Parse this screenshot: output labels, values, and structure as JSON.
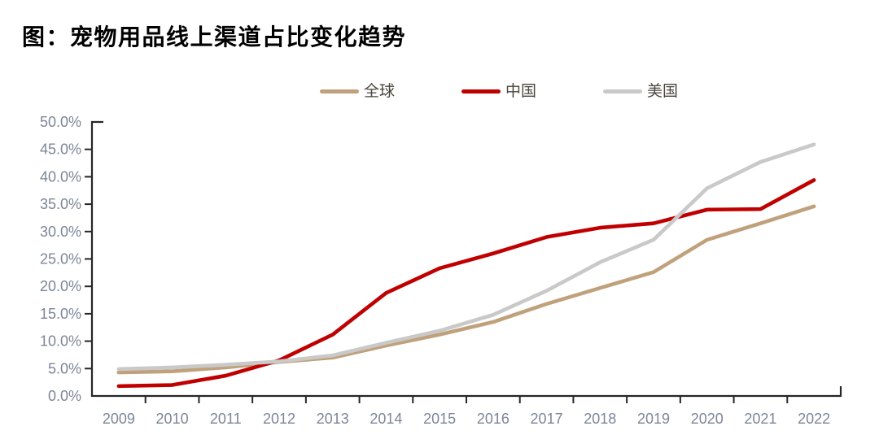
{
  "title": "图：宠物用品线上渠道占比变化趋势",
  "chart_data": {
    "type": "line",
    "title": "图：宠物用品线上渠道占比变化趋势",
    "categories": [
      "2009",
      "2010",
      "2011",
      "2012",
      "2013",
      "2014",
      "2015",
      "2016",
      "2017",
      "2018",
      "2019",
      "2020",
      "2021",
      "2022"
    ],
    "series": [
      {
        "name": "全球",
        "color": "#BFA27C",
        "values": [
          4.3,
          4.5,
          5.2,
          6.2,
          7.0,
          9.2,
          11.2,
          13.5,
          16.8,
          19.7,
          22.6,
          28.5,
          31.5,
          34.6
        ]
      },
      {
        "name": "中国",
        "color": "#C00000",
        "values": [
          1.8,
          2.0,
          3.7,
          6.5,
          11.2,
          18.8,
          23.3,
          26.0,
          29.0,
          30.7,
          31.5,
          34.0,
          34.1,
          39.4
        ]
      },
      {
        "name": "美国",
        "color": "#C9C9C9",
        "values": [
          4.9,
          5.2,
          5.7,
          6.3,
          7.4,
          9.7,
          11.9,
          14.8,
          19.2,
          24.4,
          28.5,
          37.9,
          42.7,
          45.9
        ]
      }
    ],
    "xlabel": "",
    "ylabel": "",
    "ylim": [
      0,
      50
    ],
    "y_tick_step": 5,
    "y_tick_labels": [
      "0.0%",
      "5.0%",
      "10.0%",
      "15.0%",
      "20.0%",
      "25.0%",
      "30.0%",
      "35.0%",
      "40.0%",
      "45.0%",
      "50.0%"
    ],
    "grid": false,
    "legend_position": "top",
    "axis_color": "#262626",
    "tick_label_color": "#7b8699"
  }
}
